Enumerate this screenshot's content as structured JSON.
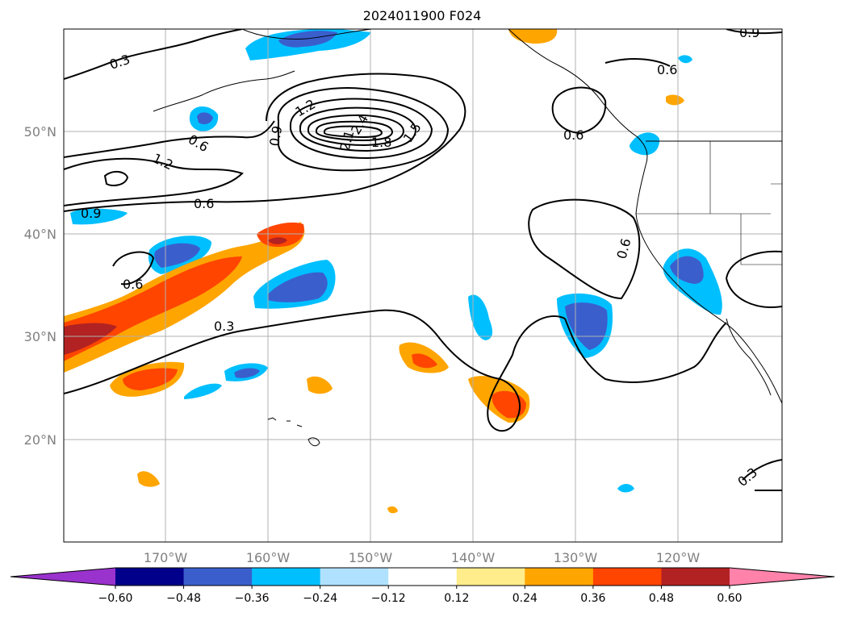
{
  "title": "2024011900 F024",
  "map": {
    "lat_labels": [
      "50°N",
      "40°N",
      "30°N",
      "20°N"
    ],
    "lon_labels": [
      "170°W",
      "160°W",
      "150°W",
      "140°W",
      "130°W",
      "120°W"
    ],
    "contour_labels": [
      "0.3",
      "0.6",
      "0.9",
      "1.2",
      "1.5",
      "1.8",
      "2.1",
      "2.4"
    ],
    "grid": true,
    "extent": {
      "lon": [
        -180,
        -110
      ],
      "lat": [
        10,
        60
      ]
    }
  },
  "colorbar": {
    "levels": [
      "-0.60",
      "-0.48",
      "-0.36",
      "-0.24",
      "-0.12",
      "0.12",
      "0.24",
      "0.36",
      "0.48",
      "0.60"
    ],
    "colors": [
      "#9a32cd",
      "#00008b",
      "#3a5fcd",
      "#00bfff",
      "#b0e2ff",
      "#ffffff",
      "#ffec8b",
      "#ffa500",
      "#ff4500",
      "#b22222",
      "#ff82ab"
    ],
    "extend": "both"
  }
}
